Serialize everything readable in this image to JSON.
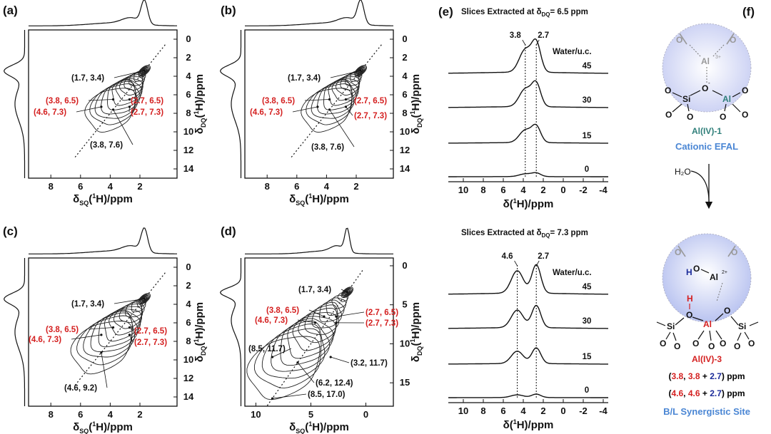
{
  "panels": [
    {
      "id": "a",
      "label": "(a)",
      "xlabel": "δSQ(1H)/ppm",
      "ylabel": "δDQ(1H)/ppm"
    },
    {
      "id": "b",
      "label": "(b)",
      "xlabel": "δSQ(1H)/ppm",
      "ylabel": "δDQ(1H)/ppm"
    },
    {
      "id": "c",
      "label": "(c)",
      "xlabel": "δSQ(1H)/ppm",
      "ylabel": "δDQ(1H)/ppm"
    },
    {
      "id": "d",
      "label": "(d)",
      "xlabel": "δSQ(1H)/ppm",
      "ylabel": "δDQ(1H)/ppm"
    },
    {
      "id": "e",
      "label": "(e)"
    },
    {
      "id": "f",
      "label": "(f)"
    }
  ],
  "chart_data": [
    {
      "type": "heatmap",
      "panel": "a",
      "xlim": [
        9.5,
        -0.5
      ],
      "ylim": [
        15,
        -1
      ],
      "xticks": [
        8,
        6,
        4,
        2
      ],
      "yticks": [
        0,
        2,
        4,
        6,
        8,
        10,
        12,
        14
      ],
      "peaks": [
        {
          "label": "(1.7, 3.4)",
          "x": 1.7,
          "y": 3.4,
          "color": "black"
        },
        {
          "label": "(3.8, 6.5)",
          "x": 3.8,
          "y": 6.5,
          "color": "red"
        },
        {
          "label": "(4.6, 7.3)",
          "x": 4.6,
          "y": 7.3,
          "color": "red"
        },
        {
          "label": "(2.7, 6.5)",
          "x": 2.7,
          "y": 6.5,
          "color": "red"
        },
        {
          "label": "(2.7, 7.3)",
          "x": 2.7,
          "y": 7.3,
          "color": "red"
        },
        {
          "label": "(3.8, 7.6)",
          "x": 3.8,
          "y": 7.6,
          "color": "black"
        }
      ]
    },
    {
      "type": "heatmap",
      "panel": "b",
      "xlim": [
        9.5,
        -0.5
      ],
      "ylim": [
        15,
        -1
      ],
      "xticks": [
        8,
        6,
        4,
        2
      ],
      "yticks": [
        0,
        2,
        4,
        6,
        8,
        10,
        12,
        14
      ],
      "peaks": [
        {
          "label": "(1.7, 3.4)",
          "x": 1.7,
          "y": 3.4,
          "color": "black"
        },
        {
          "label": "(3.8, 6.5)",
          "x": 3.8,
          "y": 6.5,
          "color": "red"
        },
        {
          "label": "(4.6, 7.3)",
          "x": 4.6,
          "y": 7.3,
          "color": "red"
        },
        {
          "label": "(2.7, 6.5)",
          "x": 2.7,
          "y": 6.5,
          "color": "red"
        },
        {
          "label": "(2.7, 7.3)",
          "x": 2.7,
          "y": 7.3,
          "color": "red"
        },
        {
          "label": "(3.8, 7.6)",
          "x": 3.8,
          "y": 7.6,
          "color": "black"
        }
      ]
    },
    {
      "type": "heatmap",
      "panel": "c",
      "xlim": [
        9.5,
        -0.5
      ],
      "ylim": [
        15,
        -1
      ],
      "xticks": [
        8,
        6,
        4,
        2
      ],
      "yticks": [
        0,
        2,
        4,
        6,
        8,
        10,
        12,
        14
      ],
      "peaks": [
        {
          "label": "(1.7, 3.4)",
          "x": 1.7,
          "y": 3.4,
          "color": "black"
        },
        {
          "label": "(3.8, 6.5)",
          "x": 3.8,
          "y": 6.5,
          "color": "red"
        },
        {
          "label": "(4.6, 7.3)",
          "x": 4.6,
          "y": 7.3,
          "color": "red"
        },
        {
          "label": "(2.7, 6.5)",
          "x": 2.7,
          "y": 6.5,
          "color": "red"
        },
        {
          "label": "(2.7, 7.3)",
          "x": 2.7,
          "y": 7.3,
          "color": "red"
        },
        {
          "label": "(4.6, 9.2)",
          "x": 4.6,
          "y": 9.2,
          "color": "black"
        }
      ]
    },
    {
      "type": "heatmap",
      "panel": "d",
      "xlim": [
        11,
        -2.5
      ],
      "ylim": [
        18,
        -1
      ],
      "xticks": [
        10,
        5,
        0
      ],
      "yticks": [
        0,
        5,
        10,
        15
      ],
      "peaks": [
        {
          "label": "(1.7, 3.4)",
          "x": 1.7,
          "y": 3.4,
          "color": "black"
        },
        {
          "label": "(3.8, 6.5)",
          "x": 3.8,
          "y": 6.5,
          "color": "red"
        },
        {
          "label": "(4.6, 7.3)",
          "x": 4.6,
          "y": 7.3,
          "color": "red"
        },
        {
          "label": "(2.7, 6.5)",
          "x": 2.7,
          "y": 6.5,
          "color": "red"
        },
        {
          "label": "(2.7, 7.3)",
          "x": 2.7,
          "y": 7.3,
          "color": "red"
        },
        {
          "label": "(8.5, 11.7)",
          "x": 8.5,
          "y": 11.7,
          "color": "black"
        },
        {
          "label": "(3.2, 11.7)",
          "x": 3.2,
          "y": 11.7,
          "color": "black"
        },
        {
          "label": "(6.2, 12.4)",
          "x": 6.2,
          "y": 12.4,
          "color": "black"
        },
        {
          "label": "(8.5, 17.0)",
          "x": 8.5,
          "y": 17.0,
          "color": "black"
        }
      ]
    },
    {
      "type": "line",
      "panel": "e-top",
      "title": "Slices Extracted at δDQ= 6.5 ppm",
      "xlabel": "δ(1H)/ppm",
      "xlim": [
        11.5,
        -4.5
      ],
      "xticks": [
        10,
        8,
        6,
        4,
        2,
        0,
        -2,
        -4
      ],
      "legend_title": "Water/u.c.",
      "series": [
        {
          "name": "45",
          "peaks": [
            3.8,
            2.7
          ]
        },
        {
          "name": "30",
          "peaks": [
            3.8,
            2.7
          ]
        },
        {
          "name": "15",
          "peaks": [
            3.8,
            2.7
          ]
        },
        {
          "name": "0",
          "peaks": [
            3.8,
            2.7
          ]
        }
      ],
      "markers": [
        3.8,
        2.7
      ]
    },
    {
      "type": "line",
      "panel": "e-bottom",
      "title": "Slices Extracted at δDQ= 7.3 ppm",
      "xlabel": "δ(1H)/ppm",
      "xlim": [
        11.5,
        -4.5
      ],
      "xticks": [
        10,
        8,
        6,
        4,
        2,
        0,
        -2,
        -4
      ],
      "legend_title": "Water/u.c.",
      "series": [
        {
          "name": "45",
          "peaks": [
            4.6,
            2.7
          ]
        },
        {
          "name": "30",
          "peaks": [
            4.6,
            2.7
          ]
        },
        {
          "name": "15",
          "peaks": [
            4.6,
            2.7
          ]
        },
        {
          "name": "0",
          "peaks": [
            4.6,
            2.7
          ]
        }
      ],
      "markers": [
        4.6,
        2.7
      ]
    }
  ],
  "labels": {
    "sq_main": "δ",
    "sq_sub": "SQ",
    "sq_sup": "1",
    "sq_rest": "H)/ppm",
    "dq_main": "δ",
    "dq_sub": "DQ",
    "dq_sup": "1",
    "dq_rest": "H)/ppm",
    "e_x_main": "δ(",
    "e_x_sup": "1",
    "e_x_rest": "H)/ppm",
    "e_top_title_a": "Slices Extracted at δ",
    "e_top_title_sub": "DQ",
    "e_top_title_b": "= 6.5 ppm",
    "e_bot_title_a": "Slices Extracted at δ",
    "e_bot_title_sub": "DQ",
    "e_bot_title_b": "= 7.3 ppm",
    "water": "Water/u.c.",
    "peak_top_1": "3.8",
    "peak_top_2": "2.7",
    "peak_bot_1": "4.6",
    "peak_bot_2": "2.7",
    "w45": "45",
    "w30": "30",
    "w15": "15",
    "w0": "0"
  },
  "scheme": {
    "h2o": "H₂O",
    "site1_name": "Al(IV)-1",
    "site1_desc": "Cationic EFAL",
    "site3_name": "Al(IV)-3",
    "line1_a": "(",
    "line1_b": "3.8",
    "line1_c": ", ",
    "line1_d": "3.8",
    "line1_e": " + ",
    "line1_f": "2.7",
    "line1_g": ") ppm",
    "line2_a": "(",
    "line2_b": "4.6",
    "line2_c": ", ",
    "line2_d": "4.6",
    "line2_e": " + ",
    "line2_f": "2.7",
    "line2_g": ") ppm",
    "site3_desc": "B/L Synergistic Site",
    "colors": {
      "teal": "#2f7f7a",
      "blue_label": "#4a86d4",
      "red": "#d42020",
      "navy": "#1c2c9a",
      "bubble": "#d7dcf5"
    }
  }
}
